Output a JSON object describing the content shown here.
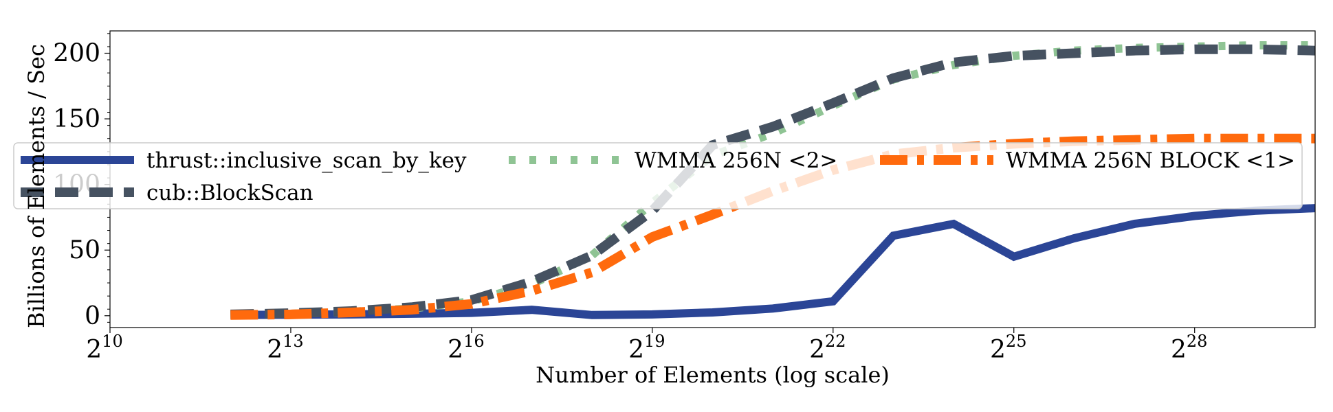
{
  "chart_data": {
    "type": "line",
    "title": "",
    "xlabel": "Number of Elements (log scale)",
    "ylabel": "Billions of Elements / Sec",
    "x_scale": "log2",
    "x": [
      4096,
      8192,
      16384,
      32768,
      65536,
      131072,
      262144,
      524288,
      1048576,
      2097152,
      4194304,
      8388608,
      16777216,
      33554432,
      67108864,
      134217728,
      268435456,
      536870912,
      1073741824
    ],
    "xlim": [
      1024,
      1073741824
    ],
    "ylim": [
      -9,
      217
    ],
    "x_ticks": [
      {
        "value": 1024,
        "base": "2",
        "exp": "10"
      },
      {
        "value": 8192,
        "base": "2",
        "exp": "13"
      },
      {
        "value": 65536,
        "base": "2",
        "exp": "16"
      },
      {
        "value": 524288,
        "base": "2",
        "exp": "19"
      },
      {
        "value": 4194304,
        "base": "2",
        "exp": "22"
      },
      {
        "value": 33554432,
        "base": "2",
        "exp": "25"
      },
      {
        "value": 268435456,
        "base": "2",
        "exp": "28"
      }
    ],
    "y_ticks": [
      0,
      50,
      100,
      150,
      200
    ],
    "grid": false,
    "legend_position": "center",
    "series": [
      {
        "name": "thrust::inclusive_scan_by_key",
        "color": "#2b4596",
        "style": "solid",
        "values": [
          0.5,
          0.8,
          1.0,
          1.5,
          2.2,
          4.5,
          0.5,
          1.0,
          2.5,
          5.5,
          11,
          61,
          70,
          45,
          59,
          70,
          76,
          80,
          82
        ]
      },
      {
        "name": "WMMA 256N <2>",
        "color": "#8fc494",
        "style": "dotted",
        "values": [
          0.8,
          1.5,
          3.0,
          5.5,
          11,
          24,
          46,
          86,
          122,
          139,
          160,
          180,
          191,
          198,
          202,
          204,
          205,
          206,
          206
        ]
      },
      {
        "name": "WMMA 256N BLOCK <1>",
        "color": "#ff6a0d",
        "style": "dashdot",
        "values": [
          0.5,
          1.0,
          2.5,
          4.5,
          9,
          19,
          33,
          60,
          77,
          95,
          111,
          123,
          128,
          131,
          133,
          134,
          135,
          135,
          135
        ]
      },
      {
        "name": "cub::BlockScan",
        "color": "#465261",
        "style": "dashed",
        "values": [
          1.0,
          2.0,
          3.5,
          6.5,
          12,
          26,
          46,
          80,
          130,
          144,
          162,
          181,
          193,
          198,
          200,
          202,
          203,
          203,
          202
        ]
      }
    ]
  }
}
